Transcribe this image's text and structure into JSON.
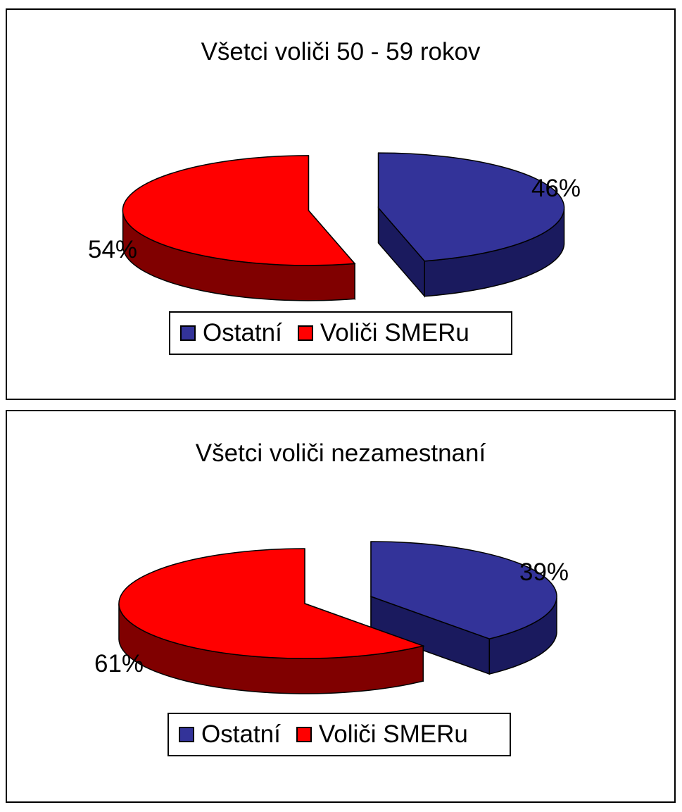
{
  "chart_data": [
    {
      "type": "pie",
      "title": "Všetci voliči 50 - 59 rokov",
      "slices": [
        {
          "name": "Ostatní",
          "value": 46,
          "label": "46%",
          "color": "#333399"
        },
        {
          "name": "Voliči SMERu",
          "value": 54,
          "label": "54%",
          "color": "#ff0000"
        }
      ],
      "legend": {
        "placement": "bottom",
        "entries": [
          "Ostatní",
          "Voliči SMERu"
        ]
      },
      "style": "3d-exploded"
    },
    {
      "type": "pie",
      "title": "Všetci voliči nezamestnaní",
      "slices": [
        {
          "name": "Ostatní",
          "value": 39,
          "label": "39%",
          "color": "#333399"
        },
        {
          "name": "Voliči SMERu",
          "value": 61,
          "label": "61%",
          "color": "#ff0000"
        }
      ],
      "legend": {
        "placement": "bottom",
        "entries": [
          "Ostatní",
          "Voliči SMERu"
        ]
      },
      "style": "3d-exploded"
    }
  ],
  "colors": {
    "ostatni_top": "#333399",
    "ostatni_side": "#1a1a5e",
    "smer_top": "#ff0000",
    "smer_side": "#800000"
  }
}
